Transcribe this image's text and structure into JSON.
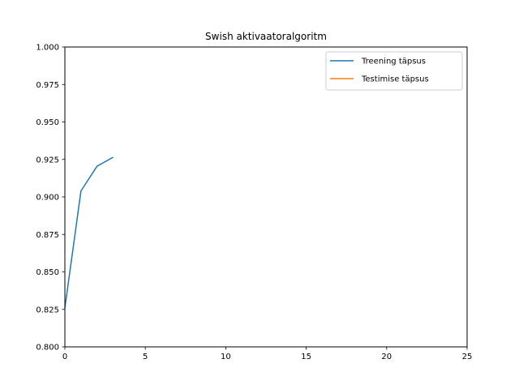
{
  "chart_data": {
    "type": "line",
    "title": "Swish aktivaatoralgoritm",
    "xlabel": "",
    "ylabel": "",
    "xlim": [
      0,
      25
    ],
    "ylim": [
      0.8,
      1.0
    ],
    "xticks": [
      0,
      5,
      10,
      15,
      20,
      25
    ],
    "yticks": [
      0.8,
      0.825,
      0.85,
      0.875,
      0.9,
      0.925,
      0.95,
      0.975,
      1.0
    ],
    "xtick_labels": [
      "0",
      "5",
      "10",
      "15",
      "20",
      "25"
    ],
    "ytick_labels": [
      "0.800",
      "0.825",
      "0.850",
      "0.875",
      "0.900",
      "0.925",
      "0.950",
      "0.975",
      "1.000"
    ],
    "grid": false,
    "legend_position": "top-right",
    "series": [
      {
        "name": "Treening täpsus",
        "color": "#1f77b4",
        "x": [
          0,
          1,
          2,
          3
        ],
        "y": [
          0.826,
          0.904,
          0.9205,
          0.9265
        ]
      },
      {
        "name": "Testimise täpsus",
        "color": "#ff7f0e",
        "x": [],
        "y": []
      }
    ]
  }
}
